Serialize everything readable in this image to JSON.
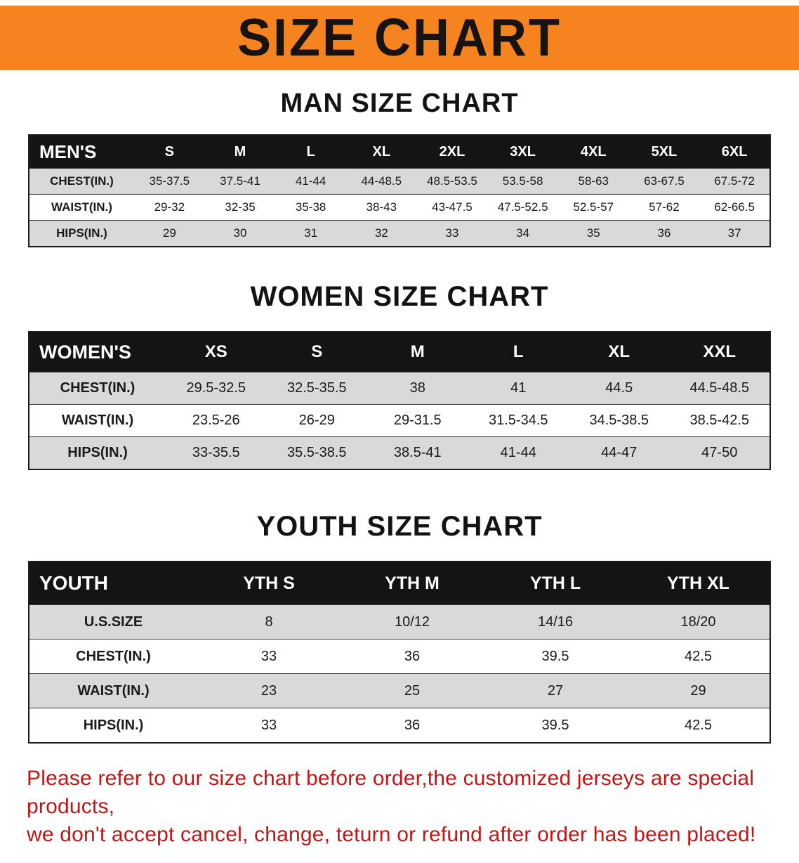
{
  "banner": {
    "title": "SIZE CHART",
    "background_color": "#f5831f",
    "text_color": "#171310"
  },
  "colors": {
    "table_header_bg": "#141414",
    "table_header_text": "#ffffff",
    "row_stripe": "#d9d9d9",
    "footer_text": "#c41414"
  },
  "sections": [
    {
      "heading": "MAN SIZE CHART",
      "table": {
        "label": "MEN'S",
        "columns": [
          "S",
          "M",
          "L",
          "XL",
          "2XL",
          "3XL",
          "4XL",
          "5XL",
          "6XL"
        ],
        "rows": [
          {
            "label": "CHEST(IN.)",
            "values": [
              "35-37.5",
              "37.5-41",
              "41-44",
              "44-48.5",
              "48.5-53.5",
              "53.5-58",
              "58-63",
              "63-67.5",
              "67.5-72"
            ]
          },
          {
            "label": "WAIST(IN.)",
            "values": [
              "29-32",
              "32-35",
              "35-38",
              "38-43",
              "43-47.5",
              "47.5-52.5",
              "52.5-57",
              "57-62",
              "62-66.5"
            ]
          },
          {
            "label": "HIPS(IN.)",
            "values": [
              "29",
              "30",
              "31",
              "32",
              "33",
              "34",
              "35",
              "36",
              "37"
            ]
          }
        ]
      }
    },
    {
      "heading": "WOMEN SIZE CHART",
      "table": {
        "label": "WOMEN'S",
        "columns": [
          "XS",
          "S",
          "M",
          "L",
          "XL",
          "XXL"
        ],
        "rows": [
          {
            "label": "CHEST(IN.)",
            "values": [
              "29.5-32.5",
              "32.5-35.5",
              "38",
              "41",
              "44.5",
              "44.5-48.5"
            ]
          },
          {
            "label": "WAIST(IN.)",
            "values": [
              "23.5-26",
              "26-29",
              "29-31.5",
              "31.5-34.5",
              "34.5-38.5",
              "38.5-42.5"
            ]
          },
          {
            "label": "HIPS(IN.)",
            "values": [
              "33-35.5",
              "35.5-38.5",
              "38.5-41",
              "41-44",
              "44-47",
              "47-50"
            ]
          }
        ]
      }
    },
    {
      "heading": "YOUTH SIZE CHART",
      "table": {
        "label": "YOUTH",
        "columns": [
          "YTH S",
          "YTH M",
          "YTH L",
          "YTH XL"
        ],
        "rows": [
          {
            "label": "U.S.SIZE",
            "values": [
              "8",
              "10/12",
              "14/16",
              "18/20"
            ]
          },
          {
            "label": "CHEST(IN.)",
            "values": [
              "33",
              "36",
              "39.5",
              "42.5"
            ]
          },
          {
            "label": "WAIST(IN.)",
            "values": [
              "23",
              "25",
              "27",
              "29"
            ]
          },
          {
            "label": "HIPS(IN.)",
            "values": [
              "33",
              "36",
              "39.5",
              "42.5"
            ]
          }
        ]
      }
    }
  ],
  "footer": {
    "line1": "Please refer to our size chart before order,the customized jerseys are special products,",
    "line2": "we don't accept cancel, change, teturn or refund after order has been placed!"
  }
}
